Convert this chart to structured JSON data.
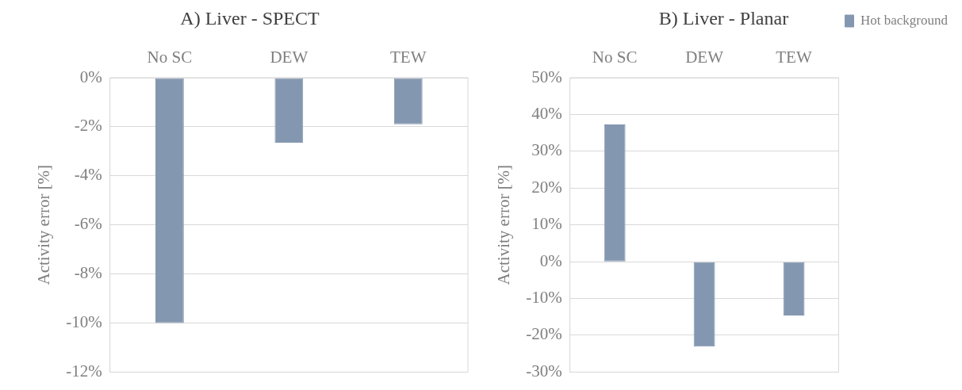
{
  "chart_data": [
    {
      "type": "bar",
      "title": "A) Liver - SPECT",
      "ylabel": "Activity error [%]",
      "categories": [
        "No SC",
        "DEW",
        "TEW"
      ],
      "series": [
        {
          "color": "#8497b0",
          "values": [
            -10,
            -2.65,
            -1.9
          ]
        }
      ],
      "ylim": [
        -12,
        0
      ],
      "yticks": [
        {
          "value": 0,
          "label": "0%"
        },
        {
          "value": -2,
          "label": "-2%"
        },
        {
          "value": -4,
          "label": "-4%"
        },
        {
          "value": -6,
          "label": "-6%"
        },
        {
          "value": -8,
          "label": "-8%"
        },
        {
          "value": -10,
          "label": "-10%"
        },
        {
          "value": -12,
          "label": "-12%"
        }
      ],
      "grid": "y"
    },
    {
      "type": "bar",
      "title": "B) Liver - Planar",
      "ylabel": "Activity error [%]",
      "categories": [
        "No SC",
        "DEW",
        "TEW"
      ],
      "series": [
        {
          "name": "Hot background",
          "color": "#8497b0",
          "values": [
            37.3,
            -23.1,
            -14.6
          ]
        }
      ],
      "ylim": [
        -30,
        50
      ],
      "yticks": [
        {
          "value": -30,
          "label": "-30%"
        },
        {
          "value": -20,
          "label": "-20%"
        },
        {
          "value": -10,
          "label": "-10%"
        },
        {
          "value": 0,
          "label": "0%"
        },
        {
          "value": 10,
          "label": "10%"
        },
        {
          "value": 20,
          "label": "20%"
        },
        {
          "value": 30,
          "label": "30%"
        },
        {
          "value": 40,
          "label": "40%"
        },
        {
          "value": 50,
          "label": "50%"
        }
      ],
      "grid": "y",
      "legend": "top right"
    }
  ]
}
